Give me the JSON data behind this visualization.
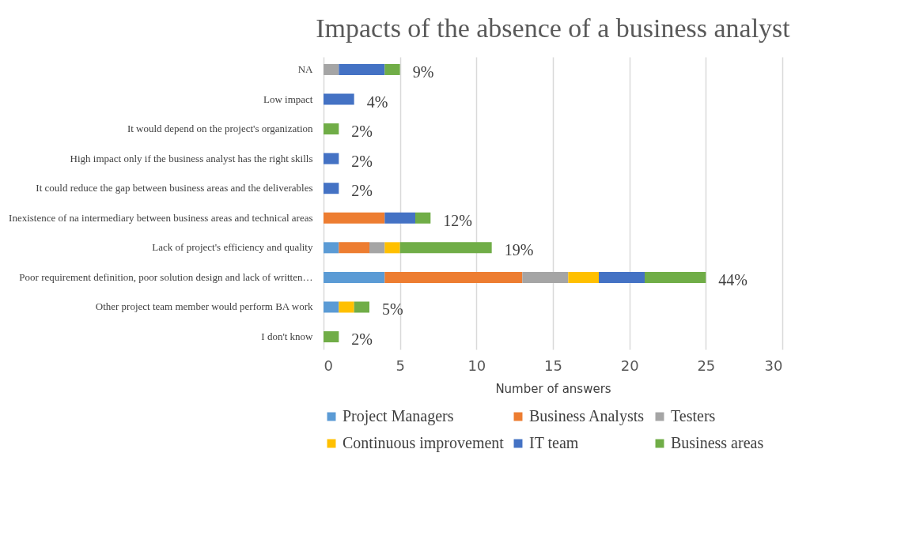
{
  "chart_data": {
    "type": "bar",
    "orientation": "horizontal",
    "stacked": true,
    "title": "Impacts of the absence of a business analyst",
    "xlabel": "Number of answers",
    "categories": [
      "NA",
      "Low impact",
      "It would depend on the project's organization",
      "High impact only if the business analyst has the right skills",
      "It could reduce the gap between business areas and the deliverables",
      "Inexistence of na intermediary between business areas and technical areas",
      "Lack of project's efficiency and quality",
      "Poor requirement definition, poor solution design and lack of written…",
      "Other project team member would perform BA work",
      "I don't know"
    ],
    "series": [
      {
        "name": "Project Managers",
        "color": "#5b9bd5",
        "values": [
          null,
          null,
          null,
          null,
          null,
          null,
          1,
          4,
          1,
          null
        ]
      },
      {
        "name": "Business Analysts",
        "color": "#ed7d31",
        "values": [
          null,
          null,
          null,
          null,
          null,
          4,
          2,
          9,
          null,
          null
        ]
      },
      {
        "name": "Testers",
        "color": "#a5a5a5",
        "values": [
          1,
          null,
          null,
          null,
          null,
          null,
          1,
          3,
          null,
          null
        ]
      },
      {
        "name": "Continuous improvement",
        "color": "#ffc000",
        "values": [
          null,
          null,
          null,
          null,
          null,
          null,
          1,
          2,
          1,
          null
        ]
      },
      {
        "name": "IT team",
        "color": "#4472c4",
        "values": [
          3,
          2,
          null,
          1,
          1,
          2,
          null,
          3,
          null,
          null
        ]
      },
      {
        "name": "Business areas",
        "color": "#70ad47",
        "values": [
          1,
          null,
          1,
          null,
          null,
          1,
          6,
          4,
          1,
          1
        ]
      }
    ],
    "annotations": [
      {
        "text": "9%",
        "x": 5,
        "y": "NA"
      },
      {
        "text": "4%",
        "x": 2,
        "y": "Low impact"
      },
      {
        "text": "2%",
        "x": 1,
        "y": "It would depend on the project's organization"
      },
      {
        "text": "2%",
        "x": 1,
        "y": "High impact only if the business analyst has the right skills"
      },
      {
        "text": "2%",
        "x": 1,
        "y": "It could reduce the gap between business areas and the deliverables"
      },
      {
        "text": "12%",
        "x": 7,
        "y": "Inexistence of na intermediary between business areas and technical areas"
      },
      {
        "text": "19%",
        "x": 11,
        "y": "Lack of project's efficiency and quality"
      },
      {
        "text": "44%",
        "x": 25,
        "y": "Poor requirement definition, poor solution design and lack of written…"
      },
      {
        "text": "5%",
        "x": 3,
        "y": "Other project team member would perform BA work"
      },
      {
        "text": "2%",
        "x": 1,
        "y": "I don't know"
      }
    ],
    "xlim": [
      0,
      30
    ],
    "xticks": [
      0,
      5,
      10,
      15,
      20,
      25,
      30
    ],
    "grid": "x",
    "legend": "bottom"
  }
}
